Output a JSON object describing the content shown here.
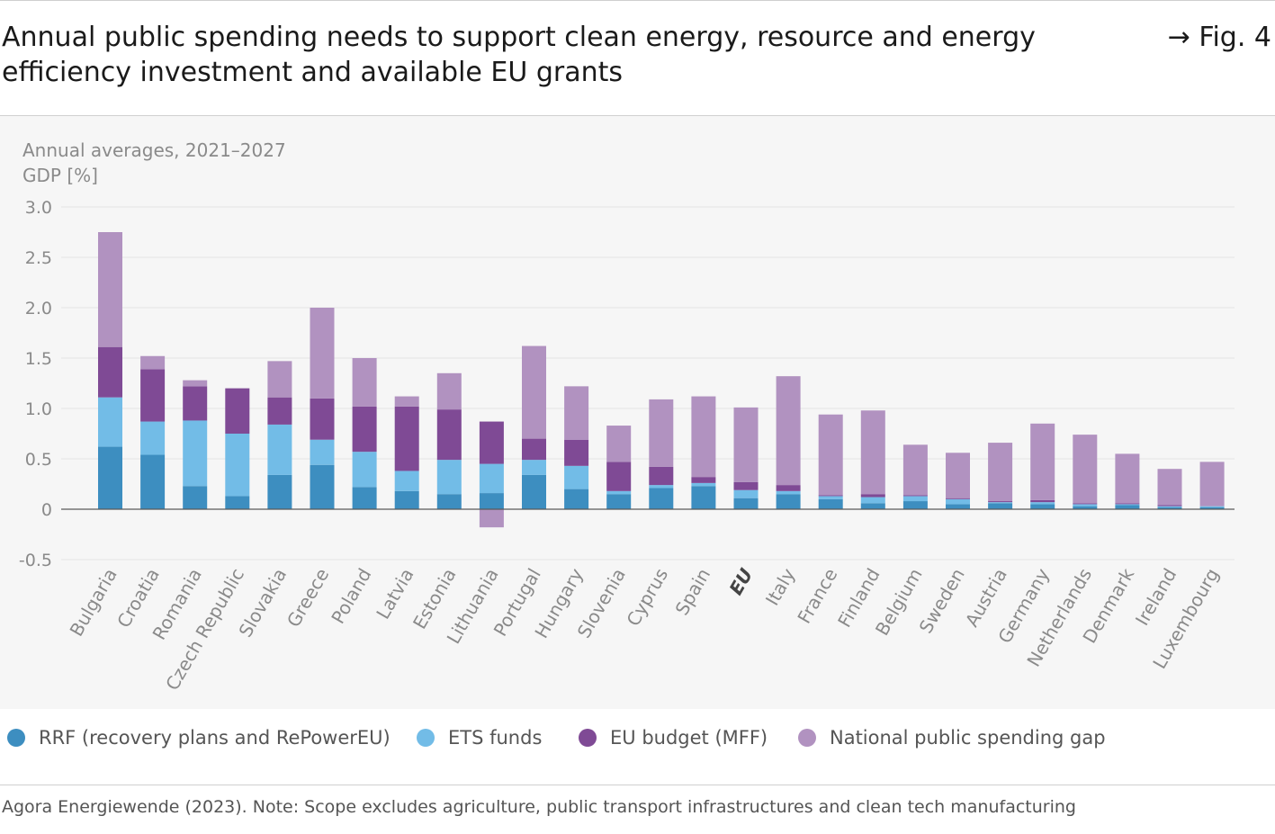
{
  "header": {
    "title": "Annual public spending needs to support clean energy, resource and energy efficiency investment and available EU grants",
    "fig_ref": "→ Fig. 4"
  },
  "chart_data": {
    "type": "bar",
    "stacked": true,
    "subtitle": "Annual averages, 2021–2027",
    "ylabel": "GDP [%]",
    "xlabel": "",
    "ylim": [
      -0.5,
      3.0
    ],
    "yticks": [
      3.0,
      2.5,
      2.0,
      1.5,
      1.0,
      0.5,
      0,
      -0.5
    ],
    "ytick_labels": [
      "3.0",
      "2.5",
      "2.0",
      "1.5",
      "1.0",
      "0.5",
      "0",
      "-0.5"
    ],
    "grid": true,
    "legend_position": "bottom",
    "categories": [
      "Bulgaria",
      "Croatia",
      "Romania",
      "Czech Republic",
      "Slovakia",
      "Greece",
      "Poland",
      "Latvia",
      "Estonia",
      "Lithuania",
      "Portugal",
      "Hungary",
      "Slovenia",
      "Cyprus",
      "Spain",
      "EU",
      "Italy",
      "France",
      "Finland",
      "Belgium",
      "Sweden",
      "Austria",
      "Germany",
      "Netherlands",
      "Denmark",
      "Ireland",
      "Luxembourg"
    ],
    "highlight_category": "EU",
    "series": [
      {
        "name": "RRF (recovery plans and RePowerEU)",
        "color": "#3d8ec0",
        "values": [
          0.62,
          0.54,
          0.23,
          0.13,
          0.34,
          0.44,
          0.22,
          0.18,
          0.15,
          0.16,
          0.34,
          0.2,
          0.15,
          0.21,
          0.23,
          0.11,
          0.15,
          0.1,
          0.06,
          0.08,
          0.05,
          0.06,
          0.05,
          0.03,
          0.04,
          0.02,
          0.02
        ]
      },
      {
        "name": "ETS funds",
        "color": "#72bce7",
        "values": [
          0.49,
          0.33,
          0.65,
          0.62,
          0.5,
          0.25,
          0.35,
          0.2,
          0.34,
          0.29,
          0.15,
          0.23,
          0.03,
          0.03,
          0.03,
          0.08,
          0.03,
          0.03,
          0.06,
          0.05,
          0.05,
          0.01,
          0.02,
          0.02,
          0.01,
          0.01,
          0.01
        ]
      },
      {
        "name": "EU budget (MFF)",
        "color": "#7f4a95",
        "values": [
          0.5,
          0.52,
          0.34,
          0.45,
          0.27,
          0.41,
          0.45,
          0.64,
          0.5,
          0.42,
          0.21,
          0.26,
          0.29,
          0.18,
          0.06,
          0.08,
          0.06,
          0.01,
          0.03,
          0.01,
          0.01,
          0.01,
          0.02,
          0.01,
          0.01,
          0.01,
          0.0
        ]
      },
      {
        "name": "National public spending gap",
        "color": "#b192c0",
        "values": [
          1.14,
          0.13,
          0.06,
          0.0,
          0.36,
          0.9,
          0.48,
          0.1,
          0.36,
          -0.18,
          0.92,
          0.53,
          0.36,
          0.67,
          0.8,
          0.74,
          1.08,
          0.8,
          0.83,
          0.5,
          0.45,
          0.58,
          0.76,
          0.68,
          0.49,
          0.36,
          0.44
        ]
      }
    ]
  },
  "source": "Agora Energiewende (2023). Note: Scope excludes agriculture, public transport infrastructures and clean tech manufacturing"
}
